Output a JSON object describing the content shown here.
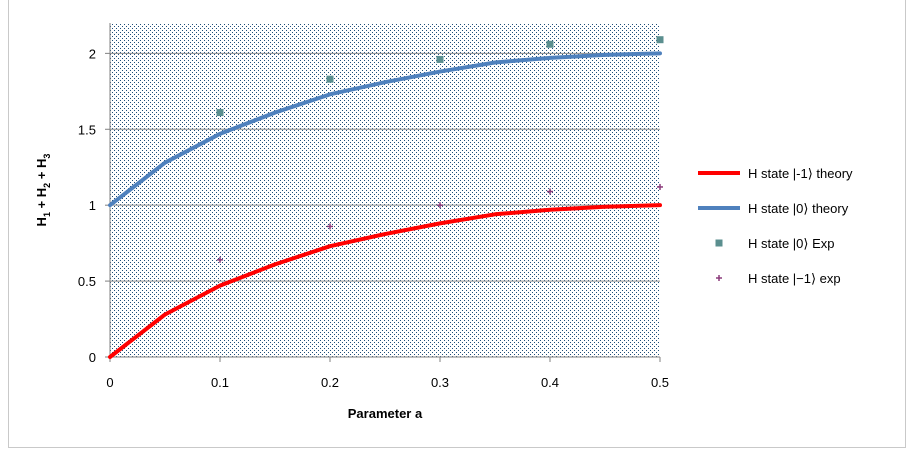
{
  "chart_data": {
    "type": "line",
    "title": "",
    "xlabel": "Parameter a",
    "ylabel_parts": [
      "H",
      "1",
      " + H",
      "2",
      " + H",
      "3"
    ],
    "xlim": [
      0,
      0.5
    ],
    "ylim": [
      0,
      2.2
    ],
    "x_ticks": [
      0,
      0.1,
      0.2,
      0.3,
      0.4,
      0.5
    ],
    "x_tick_labels": [
      "0",
      "0.1",
      "0.2",
      "0.3",
      "0.4",
      "0.5"
    ],
    "y_ticks": [
      0,
      0.5,
      1,
      1.5,
      2
    ],
    "y_tick_labels": [
      "0",
      "0.5",
      "1",
      "1.5",
      "2"
    ],
    "grid": "horizontal",
    "legend_position": "right",
    "series": [
      {
        "name": "H state |-1⟩ theory",
        "kind": "line",
        "color": "#ff0000",
        "x": [
          0,
          0.05,
          0.1,
          0.15,
          0.2,
          0.25,
          0.3,
          0.35,
          0.4,
          0.45,
          0.5
        ],
        "y": [
          0,
          0.28,
          0.47,
          0.61,
          0.73,
          0.81,
          0.88,
          0.94,
          0.97,
          0.99,
          1.0
        ]
      },
      {
        "name": "H state |0⟩ theory",
        "kind": "line",
        "color": "#4f81bd",
        "x": [
          0,
          0.05,
          0.1,
          0.15,
          0.2,
          0.25,
          0.3,
          0.35,
          0.4,
          0.45,
          0.5
        ],
        "y": [
          1.0,
          1.28,
          1.47,
          1.61,
          1.73,
          1.81,
          1.88,
          1.94,
          1.97,
          1.99,
          2.0
        ]
      },
      {
        "name": "H state |0⟩ Exp",
        "kind": "scatter",
        "marker": "square",
        "color": "#5b8f8f",
        "x": [
          0.1,
          0.2,
          0.3,
          0.4,
          0.5
        ],
        "y": [
          1.61,
          1.83,
          1.96,
          2.06,
          2.09
        ]
      },
      {
        "name": "H state |−1⟩ exp",
        "kind": "scatter",
        "marker": "plus",
        "color": "#8b3a7a",
        "x": [
          0.1,
          0.2,
          0.3,
          0.4,
          0.5
        ],
        "y": [
          0.64,
          0.86,
          1.0,
          1.09,
          1.12
        ]
      }
    ]
  }
}
